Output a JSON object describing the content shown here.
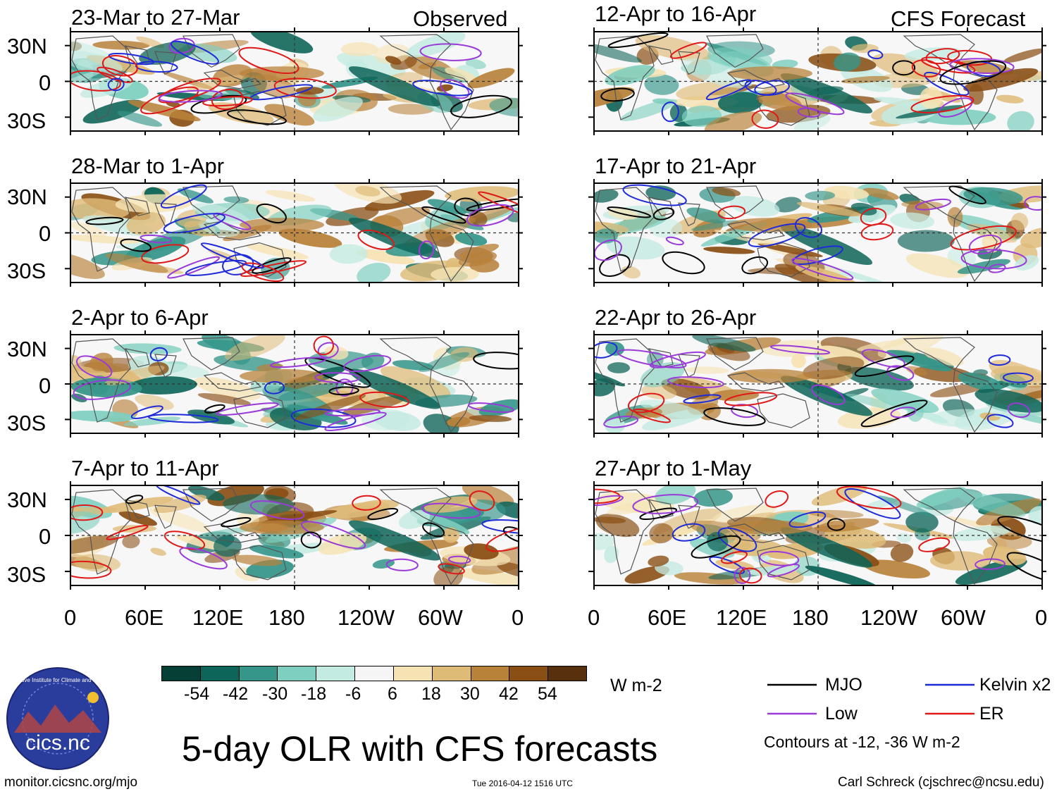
{
  "figure": {
    "title": "5-day OLR with CFS forecasts",
    "units": "W m-2",
    "observed_label": "Observed",
    "forecast_label": "CFS Forecast",
    "website": "monitor.cicsnc.org/mjo",
    "timestamp": "Tue 2016-04-12 1516 UTC",
    "credit": "Carl Schreck (cjschrec@ncsu.edu)",
    "logo_text": "cics.nc",
    "logo_ring_text": "Cooperative Institute for Climate and Satellites",
    "contour_note": "Contours at -12, -36 W m-2"
  },
  "panels": {
    "observed": [
      {
        "title": "23-Mar to 27-Mar"
      },
      {
        "title": "28-Mar to 1-Apr"
      },
      {
        "title": "2-Apr to 6-Apr"
      },
      {
        "title": "7-Apr to 11-Apr"
      }
    ],
    "forecast": [
      {
        "title": "12-Apr to 16-Apr"
      },
      {
        "title": "17-Apr to 21-Apr"
      },
      {
        "title": "22-Apr to 26-Apr"
      },
      {
        "title": "27-Apr to 1-May"
      }
    ]
  },
  "axes": {
    "lat_ticks": [
      "30N",
      "0",
      "30S"
    ],
    "lon_ticks": [
      "0",
      "60E",
      "120E",
      "180",
      "120W",
      "60W",
      "0"
    ]
  },
  "colorbar": {
    "labels": [
      "-54",
      "-42",
      "-30",
      "-18",
      "-6",
      "6",
      "18",
      "30",
      "42",
      "54"
    ],
    "colors": [
      "#053f35",
      "#0d6458",
      "#36968a",
      "#7ecfbf",
      "#c4ebe2",
      "#f5f5f5",
      "#f6e3b4",
      "#dfbb78",
      "#b9823b",
      "#8a4f15",
      "#57300d"
    ]
  },
  "legend": [
    {
      "label": "MJO",
      "color": "#000000"
    },
    {
      "label": "Kelvin x2",
      "color": "#1f2bd8"
    },
    {
      "label": "Low",
      "color": "#9a3ad8"
    },
    {
      "label": "ER",
      "color": "#e01818"
    }
  ],
  "field_colors": {
    "dry1": "#f6e3b4",
    "dry2": "#dfbb78",
    "dry3": "#b9823b",
    "dry4": "#8a4f15",
    "wet1": "#c4ebe2",
    "wet2": "#7ecfbf",
    "wet3": "#36968a",
    "wet4": "#0d6458"
  }
}
